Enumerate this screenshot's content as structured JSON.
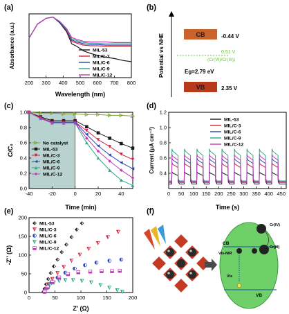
{
  "palette": {
    "MIL-53": "#1a1a1a",
    "MIL/C-3": "#d61f3c",
    "MIL/C-6": "#2a44b8",
    "MIL/C-9": "#2aa889",
    "MIL/C-12": "#c33ab8",
    "No catalyst": "#7aa030",
    "cb_band": "#c9632a",
    "vb_band": "#b83a1c",
    "level_green": "#6abf3a",
    "shade": "#b8d2cf",
    "ellipse": "#6fd06a"
  },
  "chart_data": [
    {
      "id": "a",
      "panel_label": "(a)",
      "type": "line",
      "xlabel": "Wavelength (nm)",
      "ylabel": "Absorbance (a.u.)",
      "xlim": [
        200,
        800
      ],
      "xticks": [
        "200",
        "300",
        "400",
        "500",
        "600",
        "700",
        "800"
      ],
      "legend": "top-right",
      "series": [
        {
          "name": "MIL-53",
          "x": [
            200,
            250,
            300,
            340,
            380,
            420,
            450,
            480,
            520,
            560,
            600,
            650,
            700,
            750,
            800
          ],
          "y": [
            0.62,
            0.84,
            0.93,
            0.95,
            0.86,
            0.72,
            0.53,
            0.49,
            0.42,
            0.38,
            0.35,
            0.32,
            0.3,
            0.27,
            0.25
          ]
        },
        {
          "name": "MIL/C-3",
          "x": [
            200,
            250,
            300,
            340,
            380,
            420,
            450,
            480,
            520,
            560,
            600,
            650,
            700,
            750,
            800
          ],
          "y": [
            0.62,
            0.84,
            0.93,
            0.95,
            0.87,
            0.74,
            0.57,
            0.54,
            0.51,
            0.5,
            0.5,
            0.49,
            0.49,
            0.49,
            0.49
          ]
        },
        {
          "name": "MIL/C-6",
          "x": [
            200,
            250,
            300,
            340,
            380,
            420,
            450,
            480,
            520,
            560,
            600,
            650,
            700,
            750,
            800
          ],
          "y": [
            0.62,
            0.84,
            0.93,
            0.95,
            0.87,
            0.75,
            0.59,
            0.56,
            0.53,
            0.52,
            0.52,
            0.51,
            0.51,
            0.51,
            0.51
          ]
        },
        {
          "name": "MIL/C-9",
          "x": [
            200,
            250,
            300,
            340,
            380,
            420,
            450,
            480,
            520,
            560,
            600,
            650,
            700,
            750,
            800
          ],
          "y": [
            0.62,
            0.84,
            0.93,
            0.95,
            0.88,
            0.76,
            0.61,
            0.58,
            0.55,
            0.54,
            0.54,
            0.53,
            0.53,
            0.53,
            0.53
          ]
        },
        {
          "name": "MIL/C-12",
          "x": [
            200,
            250,
            300,
            340,
            380,
            420,
            450,
            480,
            520,
            560,
            600,
            650,
            700,
            750,
            800
          ],
          "y": [
            0.62,
            0.84,
            0.93,
            0.95,
            0.88,
            0.77,
            0.63,
            0.6,
            0.57,
            0.56,
            0.56,
            0.56,
            0.55,
            0.55,
            0.55
          ]
        }
      ]
    },
    {
      "id": "b",
      "panel_label": "(b)",
      "type": "diagram",
      "ylabel": "Potential vs NHE",
      "cb": {
        "label": "CB",
        "value": "-0.44 V",
        "potential": -0.44
      },
      "vb": {
        "label": "VB",
        "value": "2.35 V",
        "potential": 2.35
      },
      "redox": {
        "value": "0.51 V",
        "couple": "(Cr(VI)/Cr(III))",
        "potential": 0.51
      },
      "gap": "Eg=2.79 eV"
    },
    {
      "id": "c",
      "panel_label": "(c)",
      "type": "line",
      "xlabel": "Time (min)",
      "ylabel": "C/C₀",
      "xlim": [
        -40,
        50
      ],
      "ylim": [
        0,
        1.0
      ],
      "xticks": [
        "-40",
        "-20",
        "0",
        "20",
        "40"
      ],
      "yticks": [
        "0.0",
        "0.2",
        "0.4",
        "0.6",
        "0.8",
        "1.0"
      ],
      "shaded_region": [
        -40,
        0
      ],
      "legend": "bottom-left",
      "series": [
        {
          "name": "No catalyst",
          "marker": "tri-right",
          "x": [
            -40,
            -30,
            -20,
            -10,
            0,
            10,
            20,
            30,
            40,
            50
          ],
          "y": [
            1.0,
            0.99,
            0.99,
            0.98,
            0.98,
            0.97,
            0.97,
            0.96,
            0.96,
            0.95
          ]
        },
        {
          "name": "MIL-53",
          "marker": "square",
          "x": [
            -40,
            -30,
            -20,
            -10,
            0,
            10,
            20,
            30,
            40,
            50
          ],
          "y": [
            1.0,
            0.94,
            0.89,
            0.89,
            0.89,
            0.81,
            0.73,
            0.66,
            0.59,
            0.53
          ]
        },
        {
          "name": "MIL/C-3",
          "marker": "tri-down",
          "x": [
            -40,
            -30,
            -20,
            -10,
            0,
            10,
            20,
            30,
            40,
            50
          ],
          "y": [
            1.0,
            0.93,
            0.87,
            0.87,
            0.87,
            0.76,
            0.64,
            0.55,
            0.45,
            0.38
          ]
        },
        {
          "name": "MIL/C-6",
          "marker": "tri-left",
          "x": [
            -40,
            -30,
            -20,
            -10,
            0,
            10,
            20,
            30,
            40,
            50
          ],
          "y": [
            1.0,
            0.92,
            0.87,
            0.87,
            0.87,
            0.71,
            0.56,
            0.44,
            0.34,
            0.26
          ]
        },
        {
          "name": "MIL/C-9",
          "marker": "tri-up",
          "x": [
            -40,
            -30,
            -20,
            -10,
            0,
            10,
            20,
            30,
            40,
            50
          ],
          "y": [
            1.0,
            0.92,
            0.86,
            0.86,
            0.86,
            0.6,
            0.4,
            0.24,
            0.11,
            0.04
          ]
        },
        {
          "name": "MIL/C-12",
          "marker": "diamond",
          "x": [
            -40,
            -30,
            -20,
            -10,
            0,
            10,
            20,
            30,
            40,
            50
          ],
          "y": [
            1.0,
            0.92,
            0.86,
            0.86,
            0.86,
            0.66,
            0.49,
            0.36,
            0.24,
            0.14
          ]
        }
      ]
    },
    {
      "id": "d",
      "panel_label": "(d)",
      "type": "line",
      "xlabel": "Time (s)",
      "ylabel": "Current (μA cm⁻²)",
      "xlim": [
        0,
        470
      ],
      "ylim": [
        0.2,
        1.2
      ],
      "xticks": [
        "0",
        "50",
        "100",
        "150",
        "200",
        "250",
        "300",
        "350",
        "400",
        "450"
      ],
      "yticks": [
        "0.4",
        "0.6",
        "0.8",
        "1.0",
        "1.2"
      ],
      "legend": "top-right",
      "pulses": 9,
      "period_s": 50,
      "series": [
        {
          "name": "MIL-53",
          "baseline": 0.26,
          "on": 0.42
        },
        {
          "name": "MIL/C-3",
          "baseline": 0.28,
          "on": 0.54
        },
        {
          "name": "MIL/C-6",
          "baseline": 0.29,
          "on": 0.6
        },
        {
          "name": "MIL/C-9",
          "baseline": 0.3,
          "on": 0.72
        },
        {
          "name": "MIL/C-12",
          "baseline": 0.29,
          "on": 0.65
        }
      ]
    },
    {
      "id": "e",
      "panel_label": "(e)",
      "type": "scatter",
      "xlabel": "Z' (Ω)",
      "ylabel": "-Z'' (Ω)",
      "xlim": [
        0,
        200
      ],
      "ylim": [
        0,
        200
      ],
      "xticks": [
        "0",
        "50",
        "100",
        "150",
        "200"
      ],
      "yticks": [
        "0",
        "50",
        "100",
        "150",
        "200"
      ],
      "legend": "top-left",
      "series": [
        {
          "name": "MIL-53",
          "marker": "half-diamond",
          "x": [
            28,
            30,
            33,
            37,
            42,
            48,
            55,
            63,
            72,
            82,
            92,
            102
          ],
          "y": [
            2,
            10,
            22,
            36,
            52,
            70,
            88,
            108,
            128,
            148,
            168,
            185
          ]
        },
        {
          "name": "MIL/C-3",
          "marker": "half-tri",
          "x": [
            30,
            33,
            38,
            45,
            55,
            67,
            82,
            98,
            115,
            133,
            152,
            172
          ],
          "y": [
            2,
            10,
            22,
            36,
            52,
            68,
            85,
            101,
            117,
            132,
            148,
            162
          ]
        },
        {
          "name": "MIL/C-6",
          "marker": "half-circle",
          "x": [
            30,
            35,
            43,
            55,
            70,
            88,
            108,
            130,
            155,
            178
          ],
          "y": [
            2,
            12,
            26,
            40,
            53,
            64,
            73,
            80,
            85,
            88
          ]
        },
        {
          "name": "MIL/C-9",
          "marker": "half-tri",
          "x": [
            30,
            34,
            40,
            48,
            58,
            70,
            85,
            102,
            120,
            138,
            155,
            170,
            180
          ],
          "y": [
            2,
            10,
            19,
            26,
            31,
            33,
            33,
            31,
            27,
            20,
            13,
            6,
            2
          ]
        },
        {
          "name": "MIL/C-12",
          "marker": "half-square",
          "x": [
            30,
            36,
            45,
            58,
            75,
            95,
            118,
            140,
            160,
            175
          ],
          "y": [
            2,
            14,
            28,
            40,
            49,
            54,
            56,
            57,
            57,
            58
          ]
        }
      ]
    }
  ],
  "panel_f": {
    "panel_label": "(f)",
    "cb_label": "CB",
    "vb_label": "VB",
    "light_label": "Vis-NIR",
    "hole_label": "Vis",
    "cr6_label": "Cr(IV)",
    "cr3_label": "Cr(III)"
  }
}
